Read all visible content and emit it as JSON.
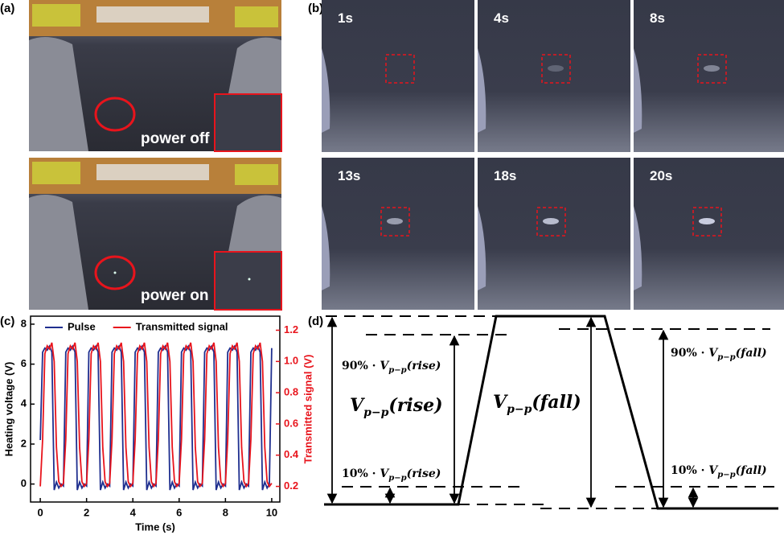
{
  "panel_labels": [
    "(a)",
    "(b)",
    "(c)",
    "(d)"
  ],
  "panel_a": {
    "captions": [
      "power off",
      "power on"
    ]
  },
  "panel_b": {
    "frames": [
      "1s",
      "4s",
      "8s",
      "13s",
      "18s",
      "20s"
    ]
  },
  "chart_data": {
    "type": "line",
    "xlabel": "Time (s)",
    "ylabel": "Heating voltage (V)",
    "y2label": "Transmitted signal (V)",
    "x": [
      0,
      0.1,
      0.2,
      0.3,
      0.4,
      0.5,
      0.6,
      0.7,
      0.8,
      0.9,
      1,
      1.1,
      1.2,
      1.3,
      1.4,
      1.5,
      1.6,
      1.7,
      1.8,
      1.9,
      2,
      2.1,
      2.2,
      2.3,
      2.4,
      2.5,
      2.6,
      2.7,
      2.8,
      2.9,
      3,
      3.1,
      3.2,
      3.3,
      3.4,
      3.5,
      3.6,
      3.7,
      3.8,
      3.9,
      4,
      4.1,
      4.2,
      4.3,
      4.4,
      4.5,
      4.6,
      4.7,
      4.8,
      4.9,
      5,
      5.1,
      5.2,
      5.3,
      5.4,
      5.5,
      5.6,
      5.7,
      5.8,
      5.9,
      6,
      6.1,
      6.2,
      6.3,
      6.4,
      6.5,
      6.6,
      6.7,
      6.8,
      6.9,
      7,
      7.1,
      7.2,
      7.3,
      7.4,
      7.5,
      7.6,
      7.7,
      7.8,
      7.9,
      8,
      8.1,
      8.2,
      8.3,
      8.4,
      8.5,
      8.6,
      8.7,
      8.8,
      8.9,
      9,
      9.1,
      9.2,
      9.3,
      9.4,
      9.5,
      9.6,
      9.7,
      9.8,
      9.9,
      10
    ],
    "series": [
      {
        "name": "Pulse",
        "color": "#1f2f8f",
        "values": [
          2.2,
          6.6,
          6.8,
          6.7,
          6.9,
          6.6,
          -0.3,
          0.1,
          -0.2,
          0.0,
          -0.1,
          6.6,
          6.8,
          6.7,
          6.9,
          6.6,
          -0.3,
          0.1,
          -0.2,
          0.0,
          -0.1,
          6.6,
          6.8,
          6.7,
          6.9,
          6.6,
          -0.3,
          0.1,
          -0.2,
          0.0,
          -0.1,
          6.6,
          6.8,
          6.7,
          6.9,
          6.6,
          -0.3,
          0.1,
          -0.2,
          0.0,
          -0.1,
          6.6,
          6.8,
          6.7,
          6.9,
          6.6,
          -0.3,
          0.1,
          -0.2,
          0.0,
          -0.1,
          6.6,
          6.8,
          6.7,
          6.9,
          6.6,
          -0.3,
          0.1,
          -0.2,
          0.0,
          -0.1,
          6.6,
          6.8,
          6.7,
          6.9,
          6.6,
          -0.3,
          0.1,
          -0.2,
          0.0,
          -0.1,
          6.6,
          6.8,
          6.7,
          6.9,
          6.6,
          -0.3,
          0.1,
          -0.2,
          0.0,
          -0.1,
          6.6,
          6.8,
          6.7,
          6.9,
          6.6,
          -0.3,
          0.1,
          -0.2,
          0.0,
          -0.1,
          6.6,
          6.8,
          6.7,
          6.9,
          6.6,
          -0.3,
          0.1,
          -0.2,
          0.0,
          6.8
        ]
      },
      {
        "name": "Transmitted signal",
        "color": "#e8141c",
        "axis": "y2",
        "values": [
          0.2,
          0.5,
          1.05,
          1.1,
          1.08,
          1.12,
          1.0,
          0.45,
          0.23,
          0.2,
          0.22,
          0.5,
          1.05,
          1.1,
          1.08,
          1.12,
          1.0,
          0.45,
          0.23,
          0.2,
          0.22,
          0.5,
          1.05,
          1.1,
          1.08,
          1.12,
          1.0,
          0.45,
          0.23,
          0.2,
          0.22,
          0.5,
          1.05,
          1.1,
          1.08,
          1.12,
          1.0,
          0.45,
          0.23,
          0.2,
          0.22,
          0.5,
          1.05,
          1.1,
          1.08,
          1.12,
          1.0,
          0.45,
          0.23,
          0.2,
          0.22,
          0.5,
          1.05,
          1.1,
          1.08,
          1.12,
          1.0,
          0.45,
          0.23,
          0.2,
          0.22,
          0.5,
          1.05,
          1.1,
          1.08,
          1.12,
          1.0,
          0.45,
          0.23,
          0.2,
          0.22,
          0.5,
          1.05,
          1.1,
          1.08,
          1.12,
          1.0,
          0.45,
          0.23,
          0.2,
          0.22,
          0.5,
          1.05,
          1.1,
          1.08,
          1.12,
          1.0,
          0.45,
          0.23,
          0.2,
          0.22,
          0.5,
          1.05,
          1.1,
          1.08,
          1.12,
          1.0,
          0.45,
          0.23,
          0.2,
          0.22
        ]
      }
    ],
    "xlim": [
      -0.42,
      10.35
    ],
    "xticks": [
      0,
      2,
      4,
      6,
      8,
      10
    ],
    "ylim": [
      -0.9,
      8.4
    ],
    "yticks": [
      0,
      2,
      4,
      6,
      8
    ],
    "y2lim": [
      0.1,
      1.29
    ],
    "y2ticks": [
      0.2,
      0.4,
      0.6,
      0.8,
      {
        "value": 1,
        "label": "1.0"
      },
      1.2
    ],
    "y2color": "#e8141c",
    "legend": "top-left"
  },
  "panel_d": {
    "labels": [
      {
        "prefix": "90% · ",
        "symbol": "V",
        "subscript": "p−p",
        "arg": "(rise)"
      },
      {
        "prefix": "10% · ",
        "symbol": "V",
        "subscript": "p−p",
        "arg": "(rise)"
      },
      {
        "prefix": "90% · ",
        "symbol": "V",
        "subscript": "p−p",
        "arg": "(fall)"
      },
      {
        "prefix": "10% · ",
        "symbol": "V",
        "subscript": "p−p",
        "arg": "(fall)"
      }
    ],
    "big_labels": [
      {
        "symbol": "V",
        "subscript": "p−p",
        "arg": "(rise)"
      },
      {
        "symbol": "V",
        "subscript": "p−p",
        "arg": "(fall)"
      }
    ]
  }
}
